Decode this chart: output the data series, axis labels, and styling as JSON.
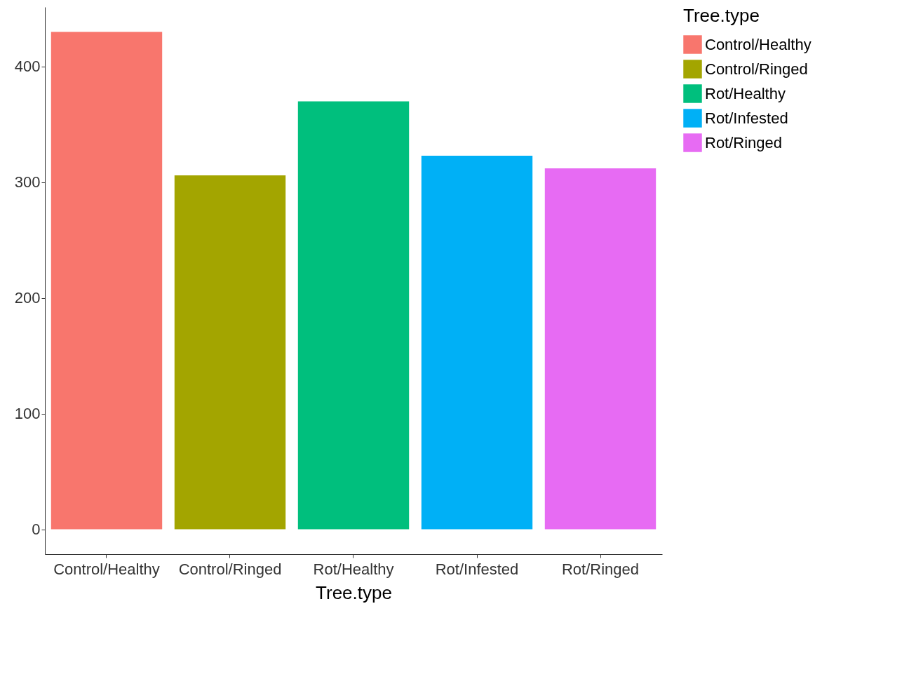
{
  "chart_data": {
    "type": "bar",
    "xlabel": "Tree.type",
    "legend_title": "Tree.type",
    "categories": [
      "Control/Healthy",
      "Control/Ringed",
      "Rot/Healthy",
      "Rot/Infested",
      "Rot/Ringed"
    ],
    "series": [
      {
        "name": "Control/Healthy",
        "color": "#f8766d",
        "values": [
          430,
          null,
          null,
          null,
          null
        ]
      },
      {
        "name": "Control/Ringed",
        "color": "#a3a500",
        "values": [
          null,
          306,
          null,
          null,
          null
        ]
      },
      {
        "name": "Rot/Healthy",
        "color": "#00bf7d",
        "values": [
          null,
          null,
          370,
          null,
          null
        ]
      },
      {
        "name": "Rot/Infested",
        "color": "#00b0f6",
        "values": [
          null,
          null,
          null,
          323,
          null
        ]
      },
      {
        "name": "Rot/Ringed",
        "color": "#e76bf3",
        "values": [
          null,
          null,
          null,
          null,
          312
        ]
      }
    ],
    "ylim": [
      -21.5,
      451.5
    ],
    "yticks": [
      0,
      100,
      200,
      300,
      400
    ],
    "grid": false,
    "legend": "right"
  }
}
